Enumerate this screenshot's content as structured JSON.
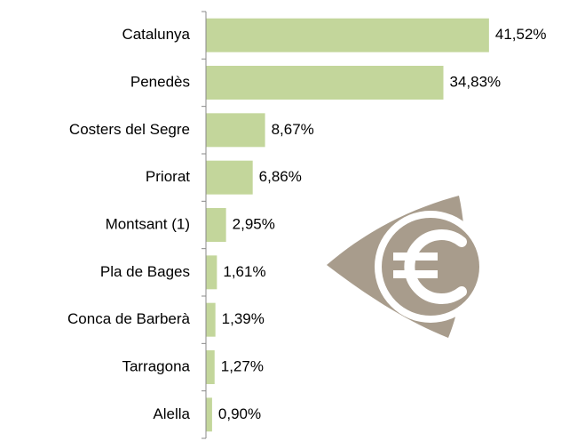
{
  "chart_data": {
    "type": "bar",
    "orientation": "horizontal",
    "categories": [
      "Catalunya",
      "Penedès",
      "Costers del Segre",
      "Priorat",
      "Montsant (1)",
      "Pla de Bages",
      "Conca de Barberà",
      "Tarragona",
      "Alella"
    ],
    "values": [
      41.52,
      34.83,
      8.67,
      6.86,
      2.95,
      1.61,
      1.39,
      1.27,
      0.9
    ],
    "value_labels": [
      "41,52%",
      "34,83%",
      "8,67%",
      "6,86%",
      "2,95%",
      "1,61%",
      "1,39%",
      "1,27%",
      "0,90%"
    ],
    "color": "#c3d69b"
  }
}
